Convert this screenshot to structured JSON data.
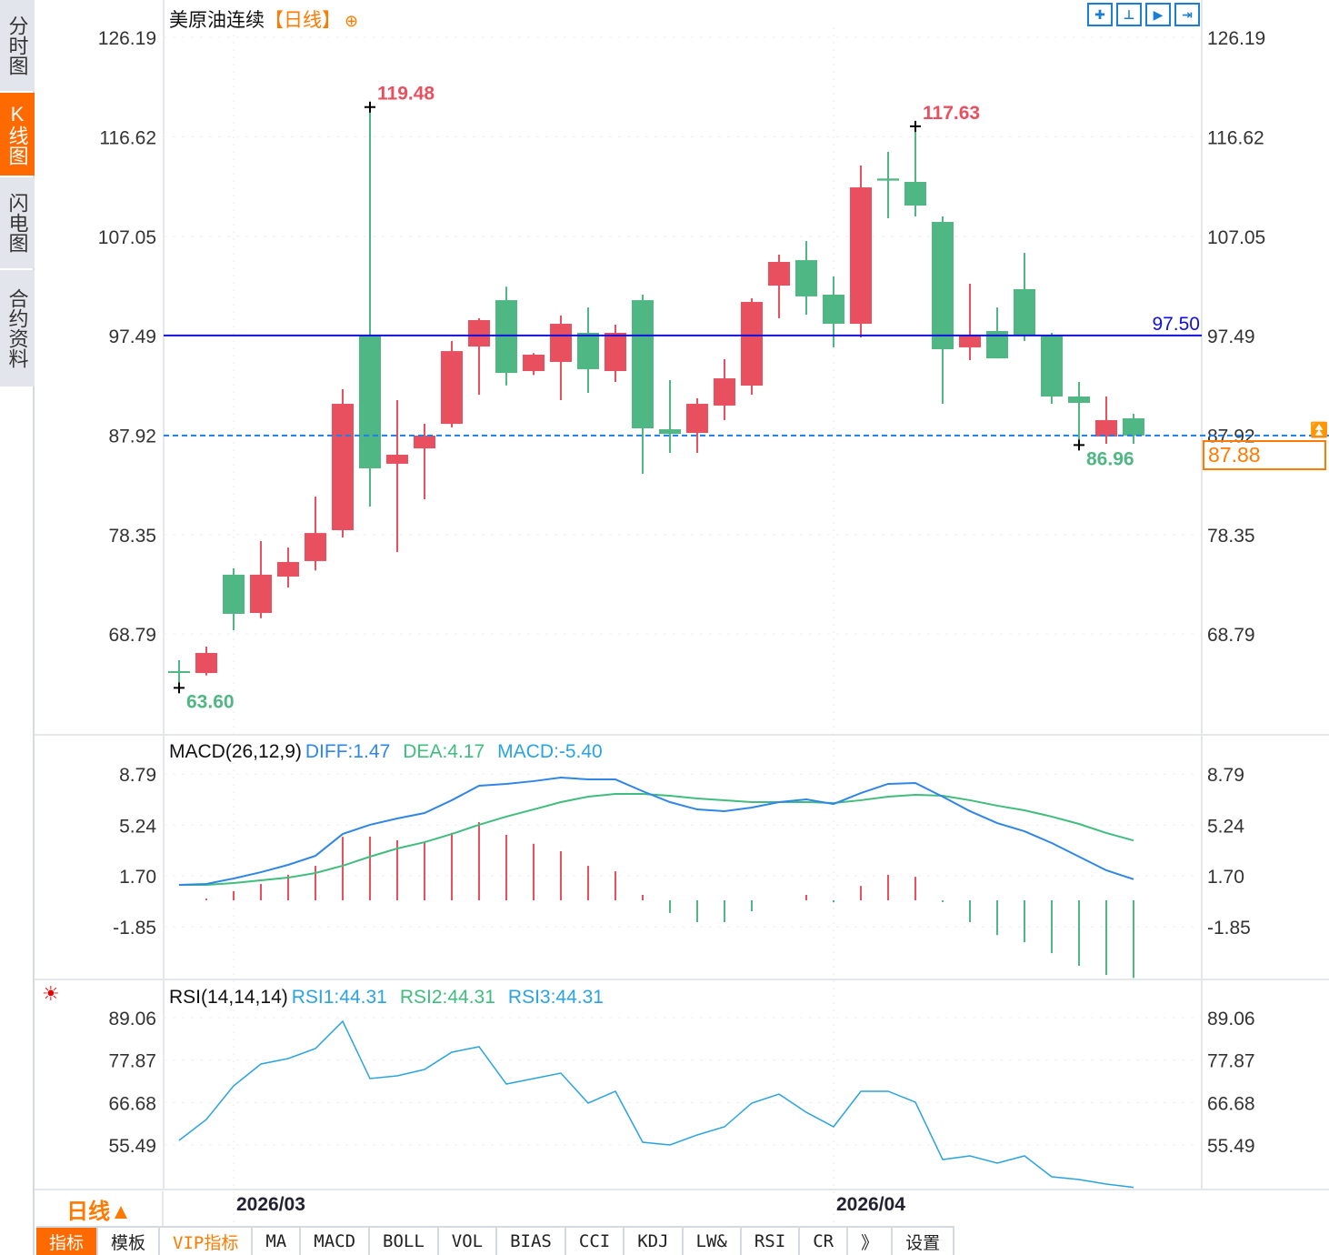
{
  "sidebar": {
    "tabs": [
      "分时图",
      "K线图",
      "闪电图",
      "合约资料"
    ],
    "active": 1
  },
  "header": {
    "title": "美原油连续",
    "period": "【日线】",
    "add_icon": "⊕"
  },
  "toolbar": {
    "icons": [
      "crosshair-icon",
      "zoom-start-icon",
      "play-icon",
      "goto-end-icon"
    ]
  },
  "annotations": {
    "high": "119.48",
    "high2": "117.63",
    "low": "63.60",
    "low2": "86.96",
    "hline": "97.50",
    "last": "87.88"
  },
  "macd": {
    "name": "MACD(26,12,9)",
    "diff": "DIFF:1.47",
    "dea": "DEA:4.17",
    "macd": "MACD:-5.40"
  },
  "rsi": {
    "name": "RSI(14,14,14)",
    "rsi1": "RSI1:44.31",
    "rsi2": "RSI2:44.31",
    "rsi3": "RSI3:44.31"
  },
  "footer": {
    "period": "日线▲",
    "dates": [
      "2026/03",
      "2026/04"
    ],
    "tabs": [
      "指标",
      "模板",
      "VIP指标",
      "MA",
      "MACD",
      "BOLL",
      "VOL",
      "BIAS",
      "CCI",
      "KDJ",
      "LW&",
      "RSI",
      "CR",
      "》",
      "设置"
    ]
  },
  "colors": {
    "up": "#e9505f",
    "down": "#4fb784",
    "diff": "#2f86e8",
    "dea": "#40bd7e",
    "rsi": "#2aa3e0",
    "accent": "#ff6a00",
    "hline": "#1010e0"
  },
  "chart_data": [
    {
      "type": "candlestick",
      "title": "美原油连续",
      "yticks": [
        "126.19",
        "116.62",
        "107.05",
        "97.49",
        "87.92",
        "78.35",
        "68.79"
      ],
      "ylim": [
        62,
        127
      ],
      "x_labels": {
        "2": "2026/03",
        "24": "2026/04"
      },
      "ohlc": [
        [
          65.21,
          66.26,
          63.6,
          65.21
        ],
        [
          65.03,
          67.57,
          64.8,
          66.96
        ],
        [
          74.49,
          75.1,
          69.15,
          70.72
        ],
        [
          70.81,
          77.72,
          70.3,
          74.49
        ],
        [
          74.31,
          77.1,
          73.26,
          75.71
        ],
        [
          75.8,
          82.0,
          74.9,
          78.5
        ],
        [
          78.77,
          92.33,
          78.07,
          90.93
        ],
        [
          97.49,
          119.48,
          81.05,
          84.72
        ],
        [
          85.16,
          91.28,
          76.67,
          86.03
        ],
        [
          86.64,
          89.01,
          81.75,
          87.87
        ],
        [
          89.0,
          96.97,
          88.66,
          96.0
        ],
        [
          96.44,
          99.16,
          91.8,
          98.98
        ],
        [
          100.9,
          102.2,
          92.7,
          93.9
        ],
        [
          94.08,
          95.8,
          93.7,
          95.66
        ],
        [
          94.96,
          99.42,
          91.28,
          98.63
        ],
        [
          97.76,
          100.2,
          91.98,
          94.26
        ],
        [
          94.08,
          98.54,
          93.03,
          97.76
        ],
        [
          100.9,
          101.43,
          84.2,
          88.57
        ],
        [
          88.48,
          93.21,
          86.21,
          88.04
        ],
        [
          88.13,
          91.46,
          86.21,
          90.93
        ],
        [
          90.76,
          95.22,
          89.36,
          93.38
        ],
        [
          92.68,
          101.08,
          91.8,
          100.73
        ],
        [
          102.3,
          105.28,
          99.16,
          104.58
        ],
        [
          104.75,
          106.59,
          99.5,
          101.26
        ],
        [
          101.43,
          103.18,
          96.36,
          98.63
        ],
        [
          98.63,
          113.85,
          97.32,
          111.75
        ],
        [
          112.6,
          115.17,
          108.78,
          112.4
        ],
        [
          112.28,
          117.63,
          108.95,
          110.0
        ],
        [
          108.43,
          108.95,
          90.93,
          96.18
        ],
        [
          96.36,
          102.48,
          95.13,
          97.58
        ],
        [
          97.93,
          100.2,
          95.3,
          95.3
        ],
        [
          101.96,
          105.45,
          96.97,
          97.58
        ],
        [
          97.58,
          97.76,
          90.93,
          91.63
        ],
        [
          91.63,
          93.03,
          86.96,
          91.02
        ],
        [
          87.78,
          91.63,
          87.08,
          89.36
        ],
        [
          89.53,
          89.97,
          87.08,
          87.88
        ]
      ],
      "ohlc_order": [
        "open",
        "high",
        "low",
        "close"
      ],
      "hline": 97.5,
      "last": 87.88
    },
    {
      "type": "line",
      "title": "MACD(26,12,9)",
      "yticks": [
        "8.79",
        "5.24",
        "1.70",
        "-1.85"
      ],
      "ylim": [
        -5.8,
        9.5
      ],
      "series": [
        {
          "name": "DIFF",
          "values": [
            1.08,
            1.14,
            1.52,
            1.96,
            2.47,
            3.1,
            4.62,
            5.26,
            5.7,
            6.08,
            6.97,
            7.98,
            8.11,
            8.3,
            8.55,
            8.42,
            8.42,
            7.6,
            6.84,
            6.33,
            6.21,
            6.46,
            6.84,
            7.03,
            6.71,
            7.47,
            8.11,
            8.17,
            7.22,
            6.21,
            5.38,
            4.81,
            3.99,
            3.04,
            2.09,
            1.47
          ]
        },
        {
          "name": "DEA",
          "values": [
            1.08,
            1.08,
            1.2,
            1.39,
            1.58,
            1.9,
            2.41,
            3.04,
            3.61,
            4.05,
            4.62,
            5.26,
            5.83,
            6.33,
            6.84,
            7.22,
            7.41,
            7.41,
            7.28,
            7.09,
            6.97,
            6.84,
            6.84,
            6.84,
            6.78,
            6.97,
            7.22,
            7.35,
            7.28,
            6.97,
            6.59,
            6.27,
            5.83,
            5.32,
            4.69,
            4.17
          ]
        }
      ],
      "bars": "MACD = 2*(DIFF-DEA)"
    },
    {
      "type": "line",
      "title": "RSI(14,14,14)",
      "yticks": [
        "89.06",
        "77.87",
        "66.68",
        "55.49"
      ],
      "ylim": [
        43.5,
        91
      ],
      "series": [
        {
          "name": "RSI1",
          "values": [
            56.68,
            62.2,
            71.07,
            76.83,
            78.27,
            80.91,
            88.1,
            72.99,
            73.71,
            75.39,
            79.95,
            81.39,
            71.55,
            72.99,
            74.43,
            66.52,
            69.64,
            56.21,
            55.49,
            58.13,
            60.28,
            66.52,
            68.9,
            64.1,
            60.28,
            69.64,
            69.64,
            66.76,
            51.65,
            52.61,
            50.69,
            52.61,
            47.09,
            46.37,
            45.18,
            44.31
          ]
        }
      ]
    }
  ]
}
